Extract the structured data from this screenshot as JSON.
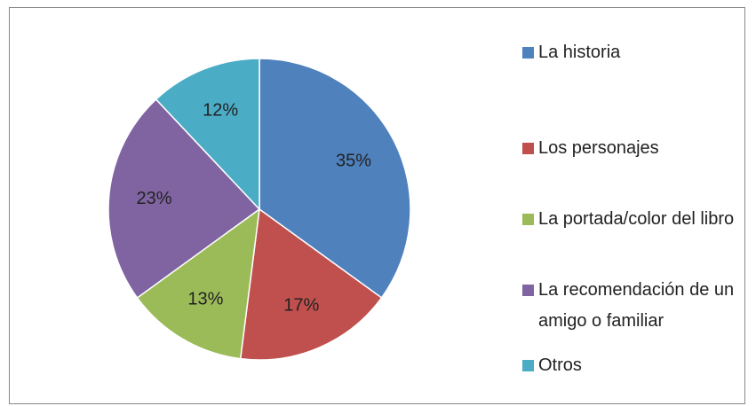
{
  "chart_data": {
    "type": "pie",
    "categories": [
      "La historia",
      "Los personajes",
      "La portada/color del libro",
      "La recomendación de un amigo o familiar",
      "Otros"
    ],
    "values": [
      35,
      17,
      13,
      23,
      12
    ],
    "value_labels": [
      "35%",
      "17%",
      "13%",
      "23%",
      "12%"
    ],
    "colors": [
      "#4F81BD",
      "#C0504D",
      "#9BBB59",
      "#8064A2",
      "#4BACC6"
    ],
    "legend": "right"
  }
}
